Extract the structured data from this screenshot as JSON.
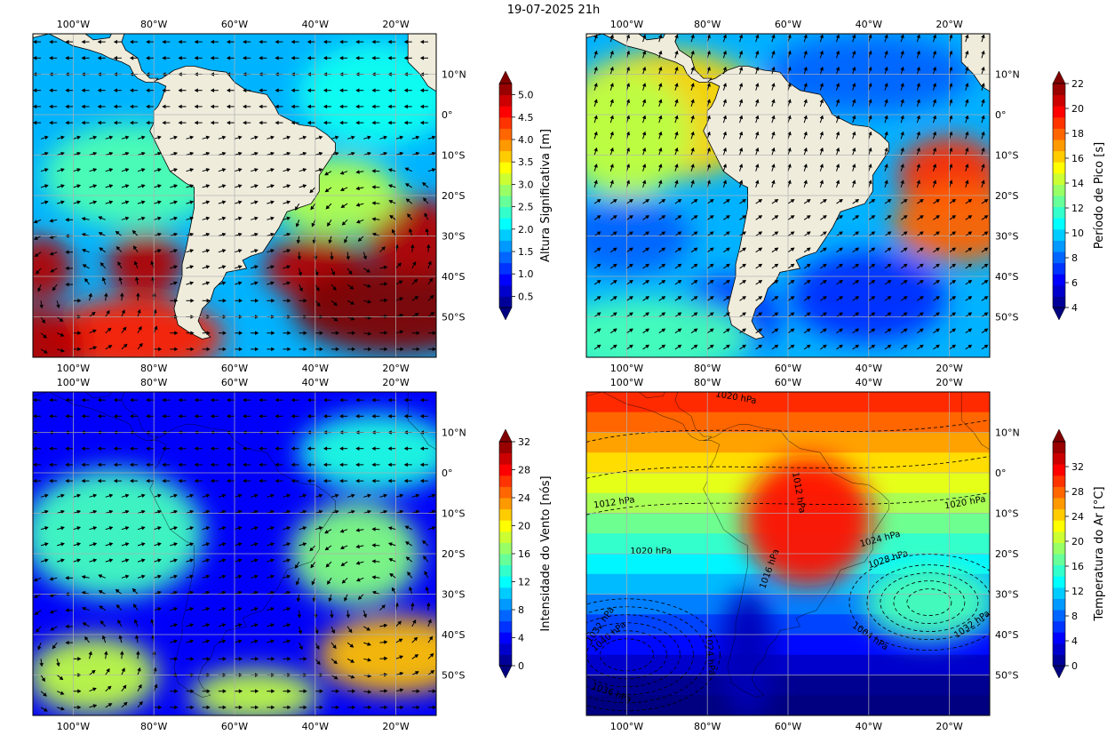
{
  "title": "19-07-2025 21h",
  "map_extent": {
    "lon": [
      -110,
      -10
    ],
    "lat": [
      -60,
      20
    ]
  },
  "lon_ticks": [
    -100,
    -80,
    -60,
    -40,
    -20
  ],
  "lat_ticks": [
    10,
    0,
    -10,
    -20,
    -30,
    -40,
    -50
  ],
  "lon_tick_labels": [
    "100°W",
    "80°W",
    "60°W",
    "40°W",
    "20°W"
  ],
  "lat_tick_labels": [
    "10°N",
    "0°",
    "10°S",
    "20°S",
    "30°S",
    "40°S",
    "50°S"
  ],
  "colors": {
    "land": "#efecdc",
    "grid": "#b0b0b0",
    "arrow": "#000000"
  },
  "panels": [
    {
      "id": "hs",
      "field": "Altura Significativa [m]",
      "cbar_label": "Altura Significativa [m]",
      "cbar_ticks": [
        "0.5",
        "1.0",
        "1.5",
        "2.0",
        "2.5",
        "3.0",
        "3.5",
        "4.0",
        "4.5",
        "5.0"
      ],
      "vmin": 0.25,
      "vmax": 5.25,
      "land_mask": true,
      "features": [
        {
          "lon": -82,
          "lat": -37,
          "value": 5.0,
          "sx": 6,
          "sy": 5
        },
        {
          "lon": -108,
          "lat": -38,
          "value": 5.0,
          "sx": 5,
          "sy": 5
        },
        {
          "lon": -40,
          "lat": -38,
          "value": 5.0,
          "sx": 8,
          "sy": 5
        },
        {
          "lon": -20,
          "lat": -48,
          "value": 5.3,
          "sx": 16,
          "sy": 7
        },
        {
          "lon": -15,
          "lat": -30,
          "value": 5.0,
          "sx": 8,
          "sy": 6
        },
        {
          "lon": -85,
          "lat": -55,
          "value": 4.5,
          "sx": 14,
          "sy": 6
        },
        {
          "lon": -110,
          "lat": -57,
          "value": 5.0,
          "sx": 8,
          "sy": 6
        },
        {
          "lon": -35,
          "lat": -20,
          "value": 3.0,
          "sx": 10,
          "sy": 6
        },
        {
          "lon": -85,
          "lat": -15,
          "value": 2.5,
          "sx": 14,
          "sy": 8
        },
        {
          "lon": -25,
          "lat": 5,
          "value": 2.2,
          "sx": 12,
          "sy": 8
        }
      ]
    },
    {
      "id": "tp",
      "field": "Período de Pico [s]",
      "cbar_label": "Período de Pico [s]",
      "cbar_ticks": [
        "4",
        "6",
        "8",
        "10",
        "12",
        "14",
        "16",
        "18",
        "20",
        "22"
      ],
      "vmin": 4,
      "vmax": 22,
      "land_mask": true,
      "features": [
        {
          "lon": -20,
          "lat": -15,
          "value": 19,
          "sx": 8,
          "sy": 6
        },
        {
          "lon": -18,
          "lat": -27,
          "value": 18,
          "sx": 10,
          "sy": 6
        },
        {
          "lon": -90,
          "lat": 0,
          "value": 16,
          "sx": 16,
          "sy": 10
        },
        {
          "lon": -100,
          "lat": -5,
          "value": 14,
          "sx": 10,
          "sy": 10
        },
        {
          "lon": -40,
          "lat": -45,
          "value": 7,
          "sx": 12,
          "sy": 7
        },
        {
          "lon": -100,
          "lat": -30,
          "value": 8,
          "sx": 10,
          "sy": 6
        },
        {
          "lon": -40,
          "lat": 10,
          "value": 8,
          "sx": 16,
          "sy": 6
        },
        {
          "lon": -75,
          "lat": -50,
          "value": 7,
          "sx": 8,
          "sy": 6
        },
        {
          "lon": -95,
          "lat": -55,
          "value": 12,
          "sx": 16,
          "sy": 6
        }
      ]
    },
    {
      "id": "wnd",
      "field": "Intensidade do Vento [nós]",
      "cbar_label": "Intensidade do Vento [nós]",
      "cbar_ticks": [
        "0",
        "4",
        "8",
        "12",
        "16",
        "20",
        "24",
        "28",
        "32"
      ],
      "vmin": 0,
      "vmax": 32,
      "land_mask": false,
      "features": [
        {
          "lon": -20,
          "lat": -45,
          "value": 22,
          "sx": 12,
          "sy": 6
        },
        {
          "lon": -95,
          "lat": -50,
          "value": 18,
          "sx": 10,
          "sy": 6
        },
        {
          "lon": -30,
          "lat": -20,
          "value": 16,
          "sx": 10,
          "sy": 8
        },
        {
          "lon": -55,
          "lat": -55,
          "value": 18,
          "sx": 10,
          "sy": 4
        },
        {
          "lon": -90,
          "lat": -15,
          "value": 14,
          "sx": 14,
          "sy": 10
        },
        {
          "lon": -25,
          "lat": 5,
          "value": 13,
          "sx": 12,
          "sy": 6
        }
      ]
    },
    {
      "id": "tair",
      "field": "Temperatura do Ar [°C]",
      "cbar_label": "Temperatura do Ar [°C]",
      "cbar_ticks": [
        "0",
        "4",
        "8",
        "12",
        "16",
        "20",
        "24",
        "28",
        "32"
      ],
      "vmin": 0,
      "vmax": 36,
      "land_mask": false,
      "features": [
        {
          "lon": -55,
          "lat": -12,
          "value": 31,
          "sx": 10,
          "sy": 10
        },
        {
          "lon": -25,
          "lat": -32,
          "value": 16,
          "sx": 10,
          "sy": 6
        },
        {
          "lon": -70,
          "lat": -45,
          "value": 2,
          "sx": 4,
          "sy": 10
        }
      ],
      "isobar_labels": [
        {
          "text": "1020 hPa",
          "lon": -73,
          "lat": 18,
          "rot": 10
        },
        {
          "text": "1012 hPa",
          "lon": -103,
          "lat": -8,
          "rot": -8
        },
        {
          "text": "1020 hPa",
          "lon": -16,
          "lat": -8,
          "rot": -10
        },
        {
          "text": "1020 hPa",
          "lon": -94,
          "lat": -20,
          "rot": 0
        },
        {
          "text": "1024 hPa",
          "lon": -37,
          "lat": -17,
          "rot": -15
        },
        {
          "text": "1028 hPa",
          "lon": -35,
          "lat": -22,
          "rot": -18
        },
        {
          "text": "1032 hPa",
          "lon": -106,
          "lat": -38,
          "rot": -55
        },
        {
          "text": "1040 hPa",
          "lon": -104,
          "lat": -41,
          "rot": -40
        },
        {
          "text": "1004 hPa",
          "lon": -40,
          "lat": -41,
          "rot": 35
        },
        {
          "text": "1024 hPa",
          "lon": -80,
          "lat": -45,
          "rot": 85
        },
        {
          "text": "1036 hPa",
          "lon": -104,
          "lat": -55,
          "rot": 20
        },
        {
          "text": "1016 hPa",
          "lon": -64,
          "lat": -24,
          "rot": -70
        },
        {
          "text": "1012 hPa",
          "lon": -58,
          "lat": -5,
          "rot": 80
        },
        {
          "text": "1032 hPa",
          "lon": -14,
          "lat": -38,
          "rot": -35
        }
      ]
    }
  ]
}
